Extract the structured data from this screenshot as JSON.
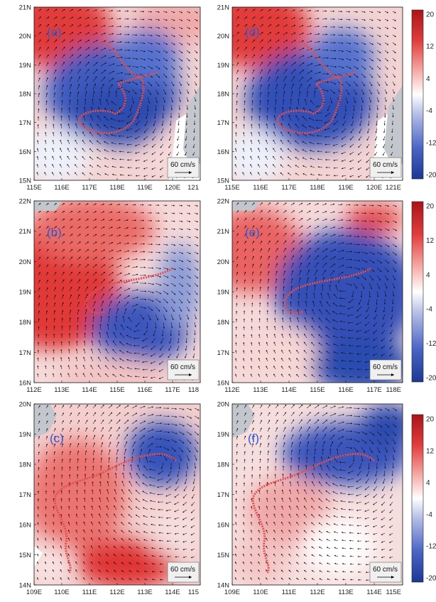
{
  "panels": [
    {
      "id": "a",
      "label": "(a)",
      "lon": [
        115,
        121
      ],
      "lat": [
        15,
        21
      ],
      "xticks": [
        "115E",
        "116E",
        "117E",
        "118E",
        "119E",
        "120E",
        "121"
      ],
      "yticks": [
        "15N",
        "16N",
        "17N",
        "18N",
        "19N",
        "20N",
        "21N"
      ],
      "ref_vector": "60 cm/s"
    },
    {
      "id": "d",
      "label": "(d)",
      "lon": [
        115,
        121
      ],
      "lat": [
        15,
        21
      ],
      "xticks": [
        "115E",
        "116E",
        "117E",
        "118E",
        "119E",
        "120E",
        "121E"
      ],
      "yticks": [
        "15N",
        "16N",
        "17N",
        "18N",
        "19N",
        "20N",
        "21N"
      ],
      "ref_vector": "60 cm/s"
    },
    {
      "id": "b",
      "label": "(b)",
      "lon": [
        112,
        118
      ],
      "lat": [
        16,
        22
      ],
      "xticks": [
        "112E",
        "113E",
        "114E",
        "115E",
        "116E",
        "117E",
        "118"
      ],
      "yticks": [
        "16N",
        "17N",
        "18N",
        "19N",
        "20N",
        "21N",
        "22N"
      ],
      "ref_vector": "60 cm/s"
    },
    {
      "id": "e",
      "label": "(e)",
      "lon": [
        112,
        118
      ],
      "lat": [
        16,
        22
      ],
      "xticks": [
        "112E",
        "113E",
        "114E",
        "115E",
        "116E",
        "117E",
        "118E"
      ],
      "yticks": [
        "16N",
        "17N",
        "18N",
        "19N",
        "20N",
        "21N",
        "22N"
      ],
      "ref_vector": "60 cm/s"
    },
    {
      "id": "c",
      "label": "(c)",
      "lon": [
        109,
        115
      ],
      "lat": [
        14,
        20
      ],
      "xticks": [
        "109E",
        "110E",
        "111E",
        "112E",
        "113E",
        "114E",
        "115"
      ],
      "yticks": [
        "14N",
        "15N",
        "16N",
        "17N",
        "18N",
        "19N",
        "20N"
      ],
      "ref_vector": "60 cm/s"
    },
    {
      "id": "f",
      "label": "(f)",
      "lon": [
        109,
        115
      ],
      "lat": [
        14,
        20
      ],
      "xticks": [
        "109E",
        "110E",
        "111E",
        "112E",
        "113E",
        "114E",
        "115E"
      ],
      "yticks": [
        "14N",
        "15N",
        "16N",
        "17N",
        "18N",
        "19N",
        "20N"
      ],
      "ref_vector": "60 cm/s"
    }
  ],
  "colorbar": {
    "ticks": [
      "20",
      "12",
      "4",
      "-4",
      "-12",
      "-20"
    ],
    "colors": [
      "#b01818",
      "#e54848",
      "#f5a5a0",
      "#ffffff",
      "#a9b4e2",
      "#4a63c4",
      "#1c3a9c"
    ]
  },
  "land_color": "#c3c6cc"
}
